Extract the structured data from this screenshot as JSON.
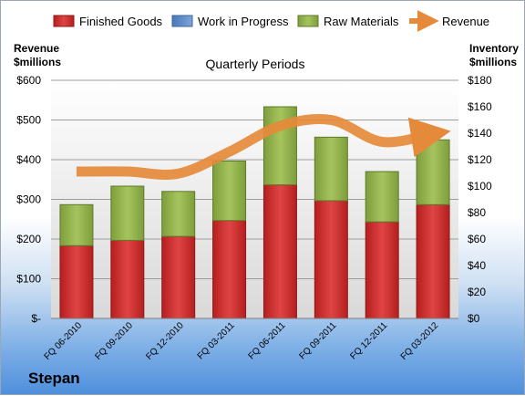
{
  "colors": {
    "finished_goods": "#cc2a2a",
    "work_in_progress": "#5b87c5",
    "raw_materials": "#8fb04a",
    "revenue": "#e58a3a"
  },
  "labels": {
    "left_axis_line1": "Revenue",
    "left_axis_line2": "$millions",
    "right_axis_line1": "Inventory",
    "right_axis_line2": "$millions",
    "subtitle": "Quarterly Periods",
    "company": "Stepan"
  },
  "chart_data": {
    "type": "bar",
    "stacked": true,
    "title": "Quarterly Periods",
    "categories": [
      "FQ 06-2010",
      "FQ 09-2010",
      "FQ 12-2010",
      "FQ 03-2011",
      "FQ 06-2011",
      "FQ 09-2011",
      "FQ 12-2011",
      "FQ 03-2012"
    ],
    "series": [
      {
        "name": "Finished Goods",
        "axis": "right",
        "values": [
          55,
          59,
          62,
          74,
          101,
          89,
          73,
          86
        ]
      },
      {
        "name": "Work in Progress",
        "axis": "right",
        "values": [
          0,
          0,
          0,
          0,
          0,
          0,
          0,
          0
        ]
      },
      {
        "name": "Raw Materials",
        "axis": "right",
        "values": [
          31,
          41,
          34,
          45,
          59,
          48,
          38,
          49
        ]
      },
      {
        "name": "Revenue",
        "type": "line",
        "axis": "left",
        "values": [
          370,
          370,
          365,
          420,
          485,
          500,
          445,
          465
        ]
      }
    ],
    "left_axis": {
      "label": "Revenue $millions",
      "ylim": [
        0,
        600
      ],
      "ticks": [
        "$-",
        "$100",
        "$200",
        "$300",
        "$400",
        "$500",
        "$600"
      ]
    },
    "right_axis": {
      "label": "Inventory $millions",
      "ylim": [
        0,
        180
      ],
      "ticks": [
        "$0",
        "$20",
        "$40",
        "$60",
        "$80",
        "$100",
        "$120",
        "$140",
        "$160",
        "$180"
      ]
    },
    "legend": [
      "Finished Goods",
      "Work in Progress",
      "Raw Materials",
      "Revenue"
    ],
    "legend_position": "top",
    "grid": true
  }
}
